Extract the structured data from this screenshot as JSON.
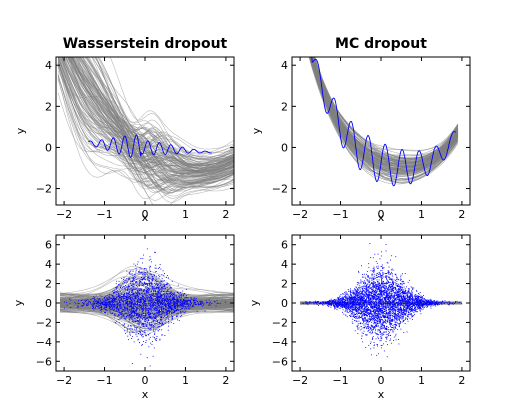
{
  "chart_data": [
    {
      "type": "line",
      "title": "Wasserstein dropout",
      "xlabel": "x",
      "ylabel": "y",
      "xlim": [
        -2.2,
        2.2
      ],
      "ylim": [
        -2.8,
        4.4
      ],
      "xticks": [
        -2,
        -1,
        0,
        1,
        2
      ],
      "yticks": [
        -2,
        0,
        2,
        4
      ],
      "xtick_labels": [
        "−2",
        "−1",
        "0",
        "1",
        "2"
      ],
      "ytick_labels": [
        "−2",
        "0",
        "2",
        "4"
      ],
      "series_color": "#0000ff",
      "ensemble_color": "#808080",
      "grid": false
    },
    {
      "type": "line",
      "title": "MC dropout",
      "xlabel": "x",
      "ylabel": "y",
      "xlim": [
        -2.2,
        2.2
      ],
      "ylim": [
        -2.8,
        4.4
      ],
      "xticks": [
        -2,
        -1,
        0,
        1,
        2
      ],
      "yticks": [
        -2,
        0,
        2,
        4
      ],
      "xtick_labels": [
        "−2",
        "−1",
        "0",
        "1",
        "2"
      ],
      "ytick_labels": [
        "−2",
        "0",
        "2",
        "4"
      ],
      "series_color": "#0000ff",
      "ensemble_color": "#808080",
      "grid": false
    },
    {
      "type": "scatter",
      "title": "",
      "xlabel": "x",
      "ylabel": "y",
      "xlim": [
        -2.2,
        2.2
      ],
      "ylim": [
        -7,
        7
      ],
      "xticks": [
        -2,
        -1,
        0,
        1,
        2
      ],
      "yticks": [
        -6,
        -4,
        -2,
        0,
        2,
        4,
        6
      ],
      "xtick_labels": [
        "−2",
        "−1",
        "0",
        "1",
        "2"
      ],
      "ytick_labels": [
        "−6",
        "−4",
        "−2",
        "0",
        "2",
        "4",
        "6"
      ],
      "series_color": "#0000ff",
      "ensemble_color": "#808080",
      "grid": false
    },
    {
      "type": "scatter",
      "title": "",
      "xlabel": "x",
      "ylabel": "y",
      "xlim": [
        -2.2,
        2.2
      ],
      "ylim": [
        -7,
        7
      ],
      "xticks": [
        -2,
        -1,
        0,
        1,
        2
      ],
      "yticks": [
        -6,
        -4,
        -2,
        0,
        2,
        4,
        6
      ],
      "xtick_labels": [
        "−2",
        "−1",
        "0",
        "1",
        "2"
      ],
      "ytick_labels": [
        "−6",
        "−4",
        "−2",
        "0",
        "2",
        "4",
        "6"
      ],
      "series_color": "#0000ff",
      "ensemble_color": "#808080",
      "grid": false
    }
  ]
}
